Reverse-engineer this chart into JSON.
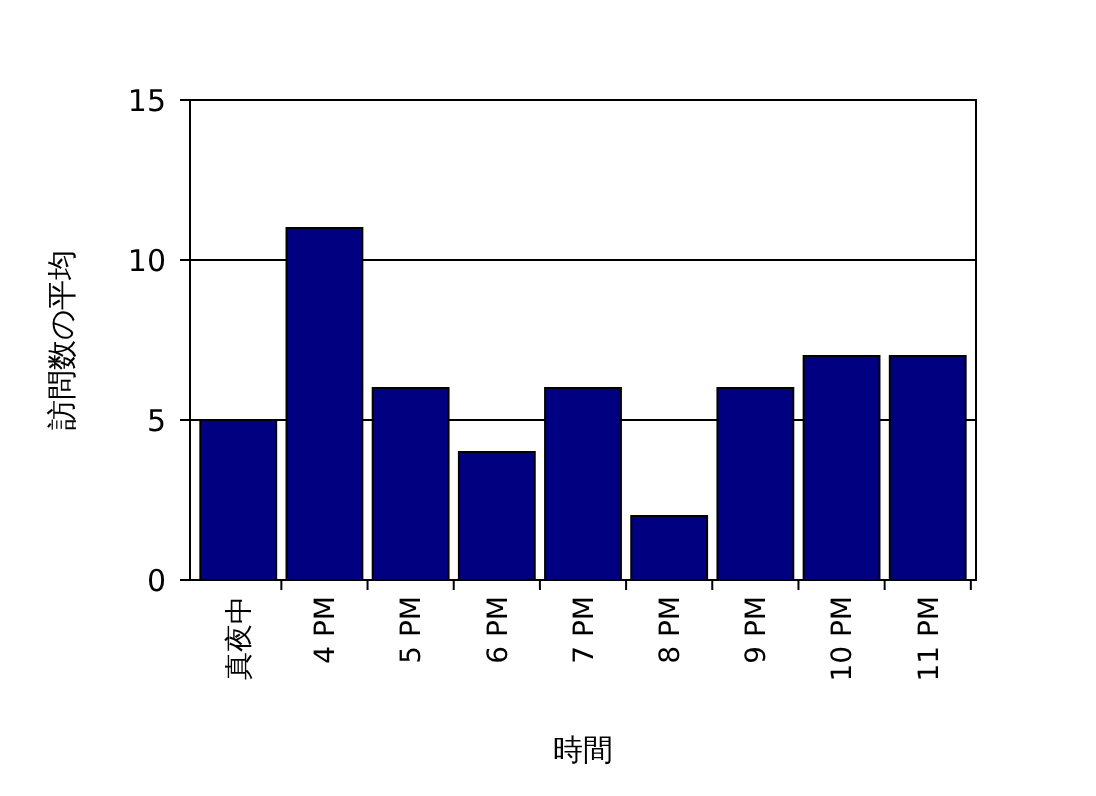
{
  "chart_data": {
    "type": "bar",
    "xlabel": "時間",
    "ylabel": "訪問数の平均",
    "categories": [
      "真夜中",
      "4 PM",
      "5 PM",
      "6 PM",
      "7 PM",
      "8 PM",
      "9 PM",
      "10 PM",
      "11 PM"
    ],
    "values": [
      5,
      11,
      6,
      4,
      6,
      2,
      6,
      7,
      7
    ],
    "color": "#000080",
    "ylim": [
      0,
      15
    ],
    "yticks": [
      0,
      5,
      10,
      15
    ],
    "grid": "y"
  }
}
